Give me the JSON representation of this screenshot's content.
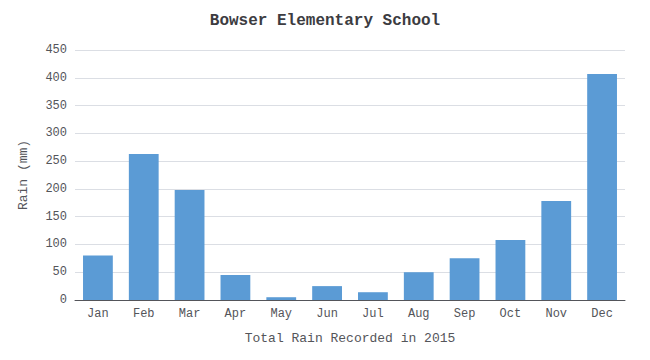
{
  "chart_data": {
    "type": "bar",
    "title": "Bowser Elementary School",
    "xlabel": "Total Rain Recorded in 2015",
    "ylabel": "Rain (mm)",
    "categories": [
      "Jan",
      "Feb",
      "Mar",
      "Apr",
      "May",
      "Jun",
      "Jul",
      "Aug",
      "Sep",
      "Oct",
      "Nov",
      "Dec"
    ],
    "values": [
      80,
      263,
      198,
      45,
      5,
      25,
      14,
      50,
      75,
      108,
      178,
      407
    ],
    "color": "#5B9BD5",
    "ylim": [
      0,
      450
    ],
    "yticks": [
      0,
      50,
      100,
      150,
      200,
      250,
      300,
      350,
      400,
      450
    ],
    "grid": true
  }
}
